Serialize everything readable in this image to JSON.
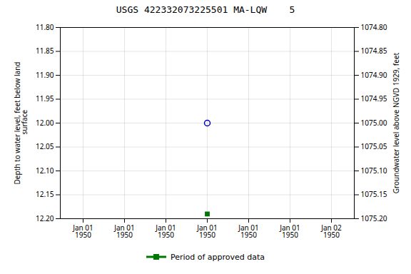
{
  "chart_data": {
    "type": "scatter",
    "title": "USGS 422332073225501 MA-LQW    5",
    "ylabel": "Depth to water level, feet below land\n surface",
    "y2label": "Groundwater level above NGVD 1929, feet",
    "categories": [
      "Jan 01\n1950",
      "Jan 01\n1950",
      "Jan 01\n1950",
      "Jan 01\n1950",
      "Jan 01\n1950",
      "Jan 01\n1950",
      "Jan 02\n1950"
    ],
    "series": [
      {
        "color": "#0000cc",
        "marker": "open_circle",
        "values": [
          null,
          null,
          null,
          12.0,
          null,
          null,
          null
        ]
      },
      {
        "name": "Period of approved data",
        "color": "#007700",
        "marker": "square",
        "values": [
          null,
          null,
          null,
          12.19,
          null,
          null,
          null
        ]
      }
    ],
    "ylim": [
      12.2,
      11.8
    ],
    "yticks": [
      {
        "value": 11.8,
        "label": "11.80"
      },
      {
        "value": 11.85,
        "label": "11.85"
      },
      {
        "value": 11.9,
        "label": "11.90"
      },
      {
        "value": 11.95,
        "label": "11.95"
      },
      {
        "value": 12.0,
        "label": "12.00"
      },
      {
        "value": 12.05,
        "label": "12.05"
      },
      {
        "value": 12.1,
        "label": "12.10"
      },
      {
        "value": 12.15,
        "label": "12.15"
      },
      {
        "value": 12.2,
        "label": "12.20"
      }
    ],
    "y2lim": [
      1075.2,
      1074.8
    ],
    "y2ticks": [
      {
        "value": 1074.8,
        "label": "1074.80"
      },
      {
        "value": 1074.85,
        "label": "1074.85"
      },
      {
        "value": 1074.9,
        "label": "1074.90"
      },
      {
        "value": 1074.95,
        "label": "1074.95"
      },
      {
        "value": 1075.0,
        "label": "1075.00"
      },
      {
        "value": 1075.05,
        "label": "1075.05"
      },
      {
        "value": 1075.1,
        "label": "1075.10"
      },
      {
        "value": 1075.15,
        "label": "1075.15"
      },
      {
        "value": 1075.2,
        "label": "1075.20"
      }
    ],
    "grid": true,
    "legend": "bottom"
  }
}
